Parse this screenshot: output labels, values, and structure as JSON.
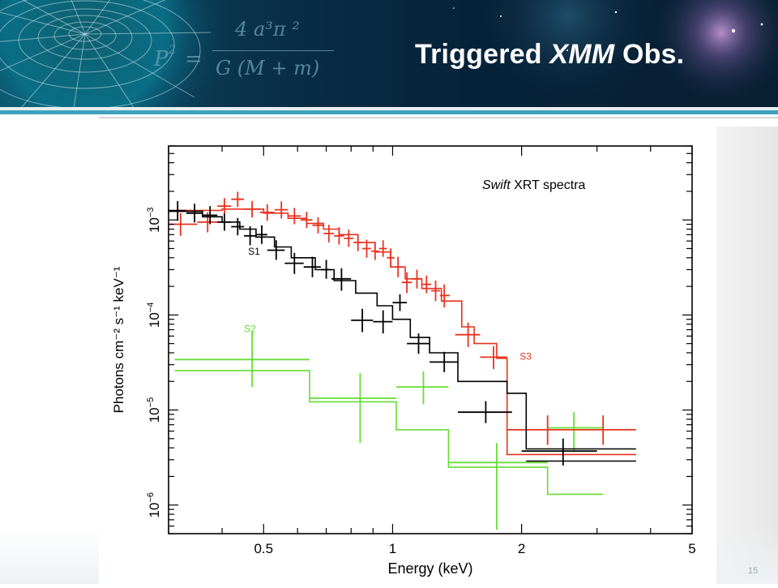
{
  "slide": {
    "title_main": "Triggered ",
    "title_italic": "XMM",
    "title_end": " Obs.",
    "page_number": "15",
    "formula_lhs": "P",
    "formula_exp": "2",
    "formula_eq": "=",
    "formula_num": "4 a³π ²",
    "formula_den": "G (M + m)"
  },
  "colors": {
    "s1": "#000000",
    "s2": "#66dd33",
    "s3": "#e8321e",
    "header_dark": "#062238",
    "header_teal": "#0a5a70",
    "accent_rule": "#3fa2bd"
  },
  "chart_data": {
    "type": "scatter",
    "annotation_italic": "Swift",
    "annotation_rest": " XRT spectra",
    "xlabel": "Energy (keV)",
    "ylabel": "Photons cm⁻² s⁻¹ keV⁻¹",
    "xscale": "log",
    "yscale": "log",
    "xlim": [
      0.3,
      5
    ],
    "ylim": [
      5e-07,
      0.006
    ],
    "x_ticks": [
      {
        "v": 0.5,
        "label": "0.5"
      },
      {
        "v": 1,
        "label": "1"
      },
      {
        "v": 2,
        "label": "2"
      },
      {
        "v": 5,
        "label": "5"
      }
    ],
    "y_ticks": [
      {
        "v": 0.001,
        "base": "10",
        "exp": "−3"
      },
      {
        "v": 0.0001,
        "base": "10",
        "exp": "−4"
      },
      {
        "v": 1e-05,
        "base": "10",
        "exp": "−5"
      },
      {
        "v": 1e-06,
        "base": "10",
        "exp": "−6"
      }
    ],
    "series": [
      {
        "name": "S1",
        "color": "#000000",
        "label_at": {
          "x": 0.46,
          "y": 0.00043
        },
        "points": [
          {
            "x": 0.315,
            "xl": 0.3,
            "xh": 0.33,
            "y": 0.00125,
            "yl": 0.00098,
            "yh": 0.00158
          },
          {
            "x": 0.345,
            "xl": 0.33,
            "xh": 0.36,
            "y": 0.00118,
            "yl": 0.00094,
            "yh": 0.00148
          },
          {
            "x": 0.375,
            "xl": 0.36,
            "xh": 0.39,
            "y": 0.00112,
            "yl": 0.0009,
            "yh": 0.0014
          },
          {
            "x": 0.405,
            "xl": 0.39,
            "xh": 0.42,
            "y": 0.00095,
            "yl": 0.00077,
            "yh": 0.00117
          },
          {
            "x": 0.435,
            "xl": 0.42,
            "xh": 0.45,
            "y": 0.00085,
            "yl": 0.00069,
            "yh": 0.00105
          },
          {
            "x": 0.465,
            "xl": 0.45,
            "xh": 0.48,
            "y": 0.00068,
            "yl": 0.00054,
            "yh": 0.00086
          },
          {
            "x": 0.495,
            "xl": 0.48,
            "xh": 0.51,
            "y": 0.0007,
            "yl": 0.00056,
            "yh": 0.00088
          },
          {
            "x": 0.535,
            "xl": 0.51,
            "xh": 0.56,
            "y": 0.00048,
            "yl": 0.00038,
            "yh": 0.00061
          },
          {
            "x": 0.59,
            "xl": 0.56,
            "xh": 0.62,
            "y": 0.00035,
            "yl": 0.00027,
            "yh": 0.00045
          },
          {
            "x": 0.65,
            "xl": 0.62,
            "xh": 0.68,
            "y": 0.00032,
            "yl": 0.00025,
            "yh": 0.00041
          },
          {
            "x": 0.7,
            "xl": 0.68,
            "xh": 0.72,
            "y": 0.0003,
            "yl": 0.00024,
            "yh": 0.00038
          },
          {
            "x": 0.76,
            "xl": 0.72,
            "xh": 0.8,
            "y": 0.00024,
            "yl": 0.00018,
            "yh": 0.00031
          },
          {
            "x": 0.85,
            "xl": 0.8,
            "xh": 0.9,
            "y": 8.8e-05,
            "yl": 6.6e-05,
            "yh": 0.000116
          },
          {
            "x": 0.95,
            "xl": 0.9,
            "xh": 1.0,
            "y": 8.5e-05,
            "yl": 6.4e-05,
            "yh": 0.000112
          },
          {
            "x": 1.04,
            "xl": 1.0,
            "xh": 1.08,
            "y": 0.000135,
            "yl": 0.00011,
            "yh": 0.000165
          },
          {
            "x": 1.15,
            "xl": 1.08,
            "xh": 1.22,
            "y": 5e-05,
            "yl": 3.9e-05,
            "yh": 6.4e-05
          },
          {
            "x": 1.32,
            "xl": 1.22,
            "xh": 1.42,
            "y": 3.2e-05,
            "yl": 2.5e-05,
            "yh": 4.1e-05
          },
          {
            "x": 1.65,
            "xl": 1.42,
            "xh": 1.9,
            "y": 9.5e-06,
            "yl": 7.3e-06,
            "yh": 1.24e-05
          },
          {
            "x": 2.5,
            "xl": 2.0,
            "xh": 3.0,
            "y": 3.7e-06,
            "yl": 2.6e-06,
            "yh": 5e-06
          }
        ],
        "model": [
          [
            0.3,
            0.00123
          ],
          [
            0.36,
            0.00123
          ],
          [
            0.36,
            0.00108
          ],
          [
            0.4,
            0.00108
          ],
          [
            0.4,
            0.00095
          ],
          [
            0.44,
            0.00095
          ],
          [
            0.44,
            0.0008
          ],
          [
            0.48,
            0.0008
          ],
          [
            0.48,
            0.00066
          ],
          [
            0.53,
            0.00066
          ],
          [
            0.53,
            0.00052
          ],
          [
            0.58,
            0.00052
          ],
          [
            0.58,
            0.0004
          ],
          [
            0.66,
            0.0004
          ],
          [
            0.66,
            0.0003
          ],
          [
            0.73,
            0.0003
          ],
          [
            0.73,
            0.00023
          ],
          [
            0.82,
            0.00023
          ],
          [
            0.82,
            0.00017
          ],
          [
            0.92,
            0.00017
          ],
          [
            0.92,
            0.000125
          ],
          [
            1.0,
            0.000125
          ],
          [
            1.0,
            9e-05
          ],
          [
            1.1,
            9e-05
          ],
          [
            1.1,
            5.8e-05
          ],
          [
            1.22,
            5.8e-05
          ],
          [
            1.22,
            4e-05
          ],
          [
            1.42,
            4e-05
          ],
          [
            1.42,
            2e-05
          ],
          [
            1.85,
            2e-05
          ],
          [
            1.85,
            1.5e-05
          ],
          [
            2.05,
            1.5e-05
          ],
          [
            2.05,
            3.9e-06
          ],
          [
            3.7,
            3.9e-06
          ]
        ],
        "model2": [
          [
            2.05,
            2.9e-06
          ],
          [
            3.7,
            2.9e-06
          ]
        ]
      },
      {
        "name": "S2",
        "color": "#66dd33",
        "label_at": {
          "x": 0.45,
          "y": 6.6e-05
        },
        "points": [
          {
            "x": 0.47,
            "xl": 0.31,
            "xh": 0.64,
            "y": 3.4e-05,
            "yl": 1.75e-05,
            "yh": 6.6e-05
          },
          {
            "x": 0.84,
            "xl": 0.64,
            "xh": 1.02,
            "y": 1.33e-05,
            "yl": 4.5e-06,
            "yh": 2.45e-05
          },
          {
            "x": 1.18,
            "xl": 1.02,
            "xh": 1.35,
            "y": 1.75e-05,
            "yl": 1.15e-05,
            "yh": 2.55e-05
          },
          {
            "x": 1.75,
            "xl": 1.35,
            "xh": 2.3,
            "y": 2.8e-06,
            "yl": 5.5e-07,
            "yh": 4.5e-06
          },
          {
            "x": 2.65,
            "xl": 2.3,
            "xh": 3.1,
            "y": 6.5e-06,
            "yl": 3.6e-06,
            "yh": 9.5e-06
          }
        ],
        "model": [
          [
            0.31,
            2.6e-05
          ],
          [
            0.64,
            2.6e-05
          ],
          [
            0.64,
            1.22e-05
          ],
          [
            1.02,
            1.22e-05
          ],
          [
            1.02,
            6.2e-06
          ],
          [
            1.35,
            6.2e-06
          ],
          [
            1.35,
            2.5e-06
          ],
          [
            2.3,
            2.5e-06
          ],
          [
            2.3,
            1.3e-06
          ],
          [
            3.1,
            1.3e-06
          ]
        ]
      },
      {
        "name": "S3",
        "color": "#e8321e",
        "label_at": {
          "x": 1.98,
          "y": 3.4e-05
        },
        "points": [
          {
            "x": 0.32,
            "xl": 0.3,
            "xh": 0.35,
            "y": 0.0009,
            "yl": 0.00068,
            "yh": 0.00118
          },
          {
            "x": 0.37,
            "xl": 0.35,
            "xh": 0.39,
            "y": 0.00095,
            "yl": 0.00074,
            "yh": 0.0012
          },
          {
            "x": 0.405,
            "xl": 0.39,
            "xh": 0.42,
            "y": 0.0014,
            "yl": 0.00115,
            "yh": 0.0017
          },
          {
            "x": 0.435,
            "xl": 0.42,
            "xh": 0.45,
            "y": 0.00165,
            "yl": 0.00137,
            "yh": 0.00198
          },
          {
            "x": 0.47,
            "xl": 0.45,
            "xh": 0.49,
            "y": 0.0013,
            "yl": 0.00106,
            "yh": 0.00158
          },
          {
            "x": 0.51,
            "xl": 0.49,
            "xh": 0.53,
            "y": 0.0012,
            "yl": 0.00098,
            "yh": 0.00146
          },
          {
            "x": 0.55,
            "xl": 0.53,
            "xh": 0.57,
            "y": 0.00128,
            "yl": 0.00104,
            "yh": 0.00157
          },
          {
            "x": 0.59,
            "xl": 0.57,
            "xh": 0.61,
            "y": 0.0011,
            "yl": 0.0009,
            "yh": 0.00134
          },
          {
            "x": 0.63,
            "xl": 0.61,
            "xh": 0.65,
            "y": 0.001,
            "yl": 0.00082,
            "yh": 0.00122
          },
          {
            "x": 0.67,
            "xl": 0.65,
            "xh": 0.69,
            "y": 0.00088,
            "yl": 0.00072,
            "yh": 0.00107
          },
          {
            "x": 0.71,
            "xl": 0.69,
            "xh": 0.73,
            "y": 0.00072,
            "yl": 0.00058,
            "yh": 0.00089
          },
          {
            "x": 0.75,
            "xl": 0.73,
            "xh": 0.77,
            "y": 0.00068,
            "yl": 0.00055,
            "yh": 0.00084
          },
          {
            "x": 0.79,
            "xl": 0.77,
            "xh": 0.81,
            "y": 0.00064,
            "yl": 0.00052,
            "yh": 0.00079
          },
          {
            "x": 0.83,
            "xl": 0.81,
            "xh": 0.85,
            "y": 0.00058,
            "yl": 0.00047,
            "yh": 0.00071
          },
          {
            "x": 0.87,
            "xl": 0.85,
            "xh": 0.89,
            "y": 0.0005,
            "yl": 0.0004,
            "yh": 0.00062
          },
          {
            "x": 0.91,
            "xl": 0.89,
            "xh": 0.93,
            "y": 0.00047,
            "yl": 0.00038,
            "yh": 0.00058
          },
          {
            "x": 0.95,
            "xl": 0.93,
            "xh": 0.97,
            "y": 0.0005,
            "yl": 0.00041,
            "yh": 0.00061
          },
          {
            "x": 0.99,
            "xl": 0.97,
            "xh": 1.01,
            "y": 0.0004,
            "yl": 0.00032,
            "yh": 0.0005
          },
          {
            "x": 1.03,
            "xl": 1.01,
            "xh": 1.05,
            "y": 0.00032,
            "yl": 0.00025,
            "yh": 0.00041
          },
          {
            "x": 1.08,
            "xl": 1.05,
            "xh": 1.11,
            "y": 0.00022,
            "yl": 0.00017,
            "yh": 0.00028
          },
          {
            "x": 1.14,
            "xl": 1.11,
            "xh": 1.17,
            "y": 0.00024,
            "yl": 0.00019,
            "yh": 0.0003
          },
          {
            "x": 1.2,
            "xl": 1.17,
            "xh": 1.23,
            "y": 0.00021,
            "yl": 0.00017,
            "yh": 0.00026
          },
          {
            "x": 1.26,
            "xl": 1.23,
            "xh": 1.29,
            "y": 0.00018,
            "yl": 0.00014,
            "yh": 0.00023
          },
          {
            "x": 1.32,
            "xl": 1.29,
            "xh": 1.36,
            "y": 0.00016,
            "yl": 0.00012,
            "yh": 0.00021
          },
          {
            "x": 1.5,
            "xl": 1.4,
            "xh": 1.6,
            "y": 6.2e-05,
            "yl": 4.6e-05,
            "yh": 8.3e-05
          },
          {
            "x": 1.72,
            "xl": 1.6,
            "xh": 1.85,
            "y": 3.6e-05,
            "yl": 2.7e-05,
            "yh": 4.7e-05
          },
          {
            "x": 2.3,
            "xl": 1.85,
            "xh": 2.75,
            "y": 6.2e-06,
            "yl": 4.3e-06,
            "yh": 8.8e-06
          },
          {
            "x": 3.1,
            "xl": 2.75,
            "xh": 3.7,
            "y": 6.2e-06,
            "yl": 4.3e-06,
            "yh": 8.8e-06
          }
        ],
        "model": [
          [
            0.3,
            0.00126
          ],
          [
            0.4,
            0.00126
          ],
          [
            0.4,
            0.0013
          ],
          [
            0.5,
            0.0013
          ],
          [
            0.5,
            0.00118
          ],
          [
            0.57,
            0.00118
          ],
          [
            0.57,
            0.00104
          ],
          [
            0.63,
            0.00104
          ],
          [
            0.63,
            0.00092
          ],
          [
            0.69,
            0.00092
          ],
          [
            0.69,
            0.0008
          ],
          [
            0.75,
            0.0008
          ],
          [
            0.75,
            0.0007
          ],
          [
            0.83,
            0.0007
          ],
          [
            0.83,
            0.00058
          ],
          [
            0.91,
            0.00058
          ],
          [
            0.91,
            0.00046
          ],
          [
            0.99,
            0.00046
          ],
          [
            0.99,
            0.00032
          ],
          [
            1.07,
            0.00032
          ],
          [
            1.07,
            0.00024
          ],
          [
            1.17,
            0.00024
          ],
          [
            1.17,
            0.00019
          ],
          [
            1.3,
            0.00019
          ],
          [
            1.3,
            0.00014
          ],
          [
            1.45,
            0.00014
          ],
          [
            1.45,
            7.5e-05
          ],
          [
            1.55,
            7.5e-05
          ],
          [
            1.55,
            5e-05
          ],
          [
            1.75,
            5e-05
          ],
          [
            1.75,
            3.5e-05
          ],
          [
            1.85,
            3.5e-05
          ],
          [
            1.85,
            3.4e-06
          ],
          [
            3.7,
            3.4e-06
          ]
        ]
      }
    ]
  }
}
